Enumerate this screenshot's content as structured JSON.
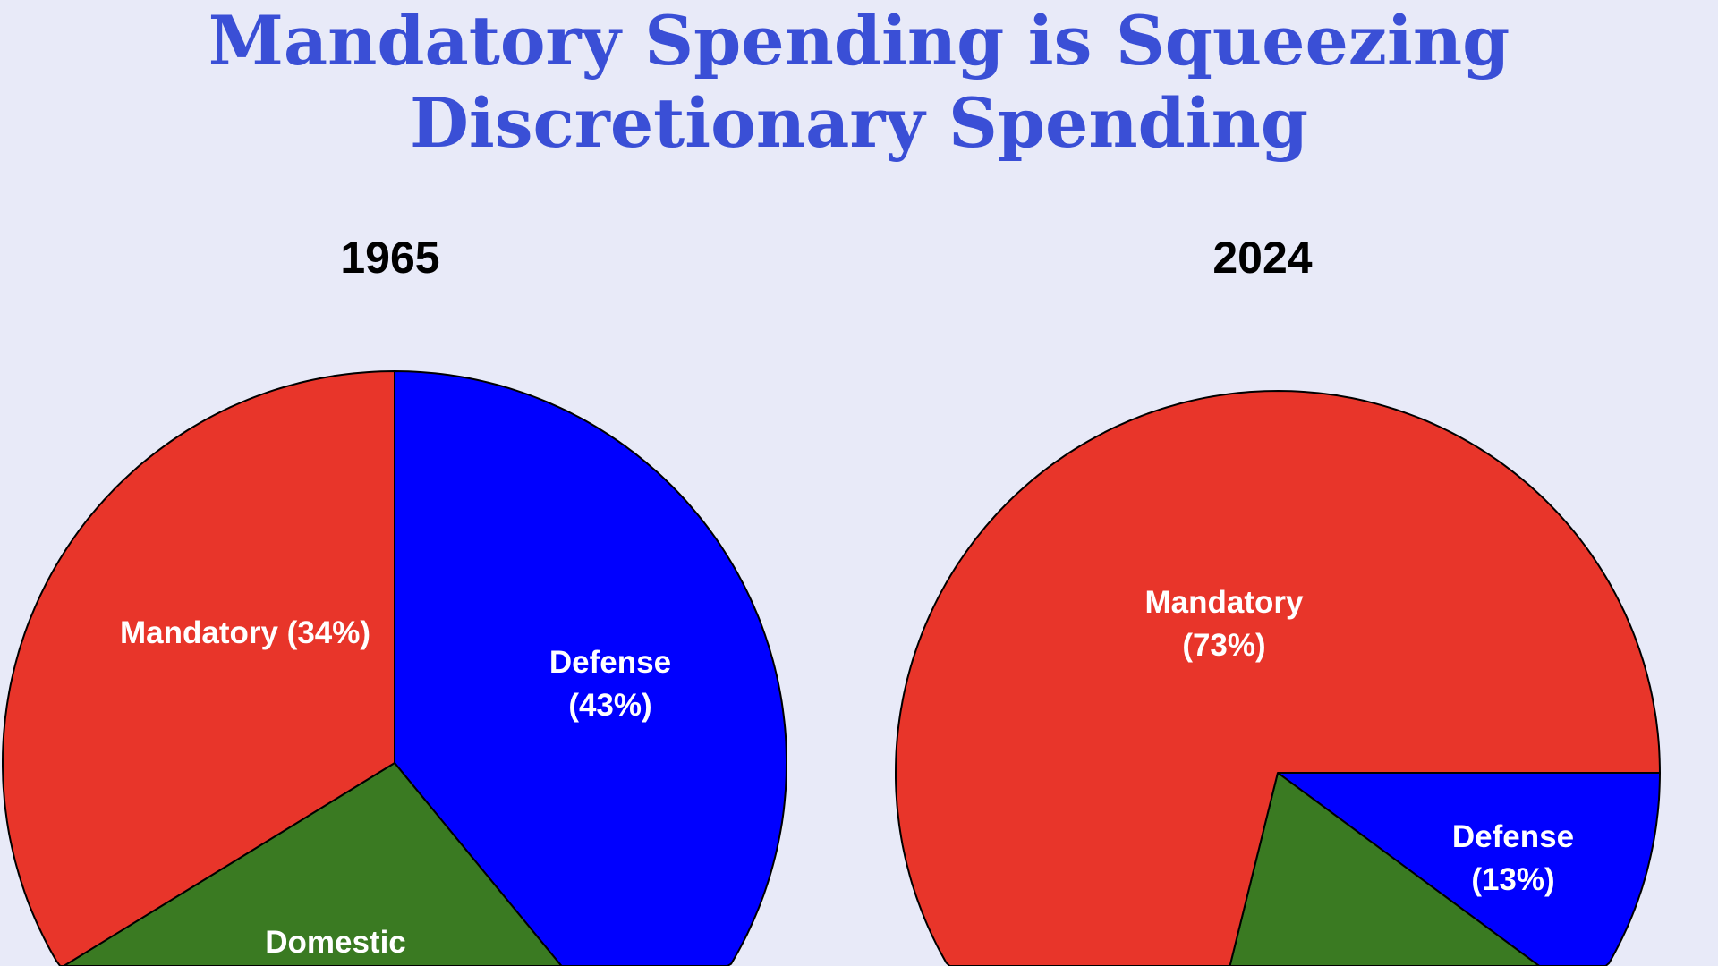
{
  "title_lines": [
    "Mandatory Spending is Squeezing",
    "Discretionary Spending"
  ],
  "colors": {
    "Mandatory": "#e8352a",
    "Defense": "#0000ff",
    "Domestic": "#3a7a22",
    "title": "#3a4fd6",
    "background": "#e8eaf8"
  },
  "chart_data": [
    {
      "type": "pie",
      "title": "1965",
      "start": "top, clockwise",
      "categories": [
        "Defense",
        "Domestic",
        "Mandatory"
      ],
      "values": [
        43,
        23,
        34
      ],
      "labels": [
        [
          "Defense",
          "(43%)"
        ],
        [
          "Domestic"
        ],
        [
          "Mandatory (34%)"
        ]
      ]
    },
    {
      "type": "pie",
      "title": "2024",
      "start": "3 o'clock, clockwise",
      "categories": [
        "Defense",
        "Domestic",
        "Mandatory"
      ],
      "values": [
        13,
        14,
        73
      ],
      "labels": [
        [
          "Defense",
          "(13%)"
        ],
        [],
        [
          "Mandatory",
          "(73%)"
        ]
      ]
    }
  ]
}
